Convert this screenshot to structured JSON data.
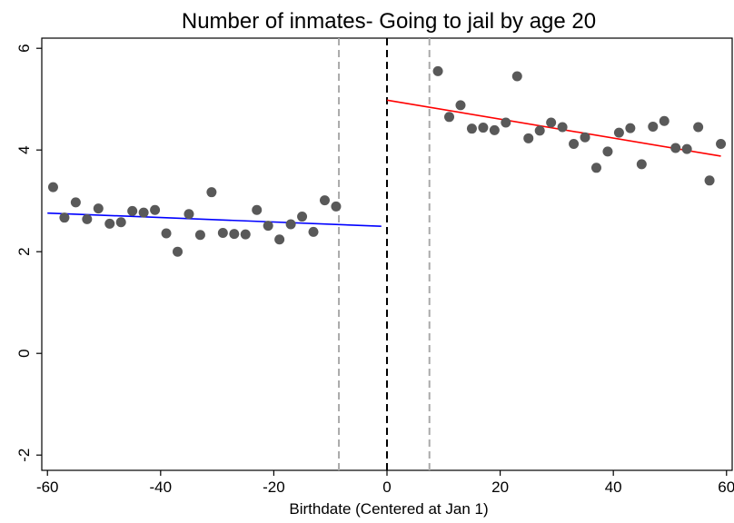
{
  "chart_data": {
    "type": "scatter",
    "title": "Number of inmates- Going to jail by age 20",
    "xlabel": "Birthdate (Centered at Jan 1)",
    "ylabel": "",
    "xlim": [
      -61,
      61
    ],
    "ylim": [
      -2.3,
      6.2
    ],
    "xticks": [
      -60,
      -40,
      -20,
      0,
      20,
      40,
      60
    ],
    "yticks": [
      -2,
      0,
      2,
      4,
      6
    ],
    "grid": false,
    "legend": "none",
    "points": [
      [
        -59,
        3.27
      ],
      [
        -57,
        2.67
      ],
      [
        -55,
        2.97
      ],
      [
        -53,
        2.64
      ],
      [
        -51,
        2.85
      ],
      [
        -49,
        2.55
      ],
      [
        -47,
        2.58
      ],
      [
        -45,
        2.8
      ],
      [
        -43,
        2.77
      ],
      [
        -41,
        2.82
      ],
      [
        -39,
        2.36
      ],
      [
        -37,
        2.0
      ],
      [
        -35,
        2.74
      ],
      [
        -33,
        2.33
      ],
      [
        -31,
        3.17
      ],
      [
        -29,
        2.37
      ],
      [
        -27,
        2.35
      ],
      [
        -25,
        2.34
      ],
      [
        -23,
        2.82
      ],
      [
        -21,
        2.51
      ],
      [
        -19,
        2.24
      ],
      [
        -17,
        2.54
      ],
      [
        -15,
        2.69
      ],
      [
        -13,
        2.39
      ],
      [
        -11,
        3.01
      ],
      [
        -9,
        2.89
      ],
      [
        9,
        5.55
      ],
      [
        11,
        4.65
      ],
      [
        13,
        4.88
      ],
      [
        15,
        4.42
      ],
      [
        17,
        4.44
      ],
      [
        19,
        4.39
      ],
      [
        21,
        4.54
      ],
      [
        23,
        5.45
      ],
      [
        25,
        4.23
      ],
      [
        27,
        4.38
      ],
      [
        29,
        4.54
      ],
      [
        31,
        4.45
      ],
      [
        33,
        4.12
      ],
      [
        35,
        4.25
      ],
      [
        37,
        3.65
      ],
      [
        39,
        3.97
      ],
      [
        41,
        4.34
      ],
      [
        43,
        4.43
      ],
      [
        45,
        3.72
      ],
      [
        47,
        4.46
      ],
      [
        49,
        4.57
      ],
      [
        51,
        4.04
      ],
      [
        53,
        4.02
      ],
      [
        55,
        4.45
      ],
      [
        57,
        3.4
      ],
      [
        59,
        4.12
      ]
    ],
    "fit_lines": [
      {
        "x": [
          -60,
          -1
        ],
        "y": [
          2.76,
          2.5
        ],
        "color": "#0000ff"
      },
      {
        "x": [
          0,
          59
        ],
        "y": [
          4.98,
          3.88
        ],
        "color": "#ff0000"
      }
    ],
    "vlines": [
      {
        "x": -8.5,
        "style": "dashed",
        "color": "#aaaaaa"
      },
      {
        "x": 0,
        "style": "dashed",
        "color": "#000000"
      },
      {
        "x": 7.5,
        "style": "dashed",
        "color": "#aaaaaa"
      }
    ],
    "marker_color": "#595959"
  }
}
